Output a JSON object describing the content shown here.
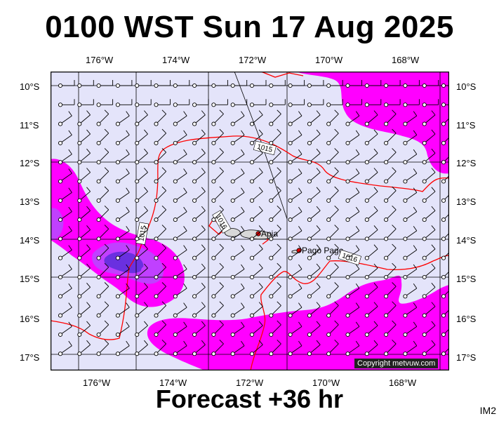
{
  "header": {
    "title": "0100 WST Sun 17 Aug 2025"
  },
  "footer": {
    "forecast": "Forecast +36 hr",
    "code": "IM2",
    "copyright": "Copyright metvuw.com"
  },
  "axes": {
    "lon_labels": [
      "176°W",
      "174°W",
      "172°W",
      "170°W",
      "168°W"
    ],
    "lat_labels": [
      "10°S",
      "11°S",
      "12°S",
      "13°S",
      "14°S",
      "15°S",
      "16°S",
      "17°S"
    ]
  },
  "places": [
    {
      "name": "Apia"
    },
    {
      "name": "Pago Pago"
    }
  ],
  "isobars": [
    {
      "label": "1015"
    },
    {
      "label": "1016"
    },
    {
      "label": "1015"
    },
    {
      "label": "1016"
    }
  ],
  "colors": {
    "background": "#e4e4fa",
    "precip_light": "#ff00ff",
    "precip_mid": "#c040ff",
    "precip_heavy": "#6a30e0",
    "isobar": "#ff0000",
    "land": "#d8d8d8"
  }
}
